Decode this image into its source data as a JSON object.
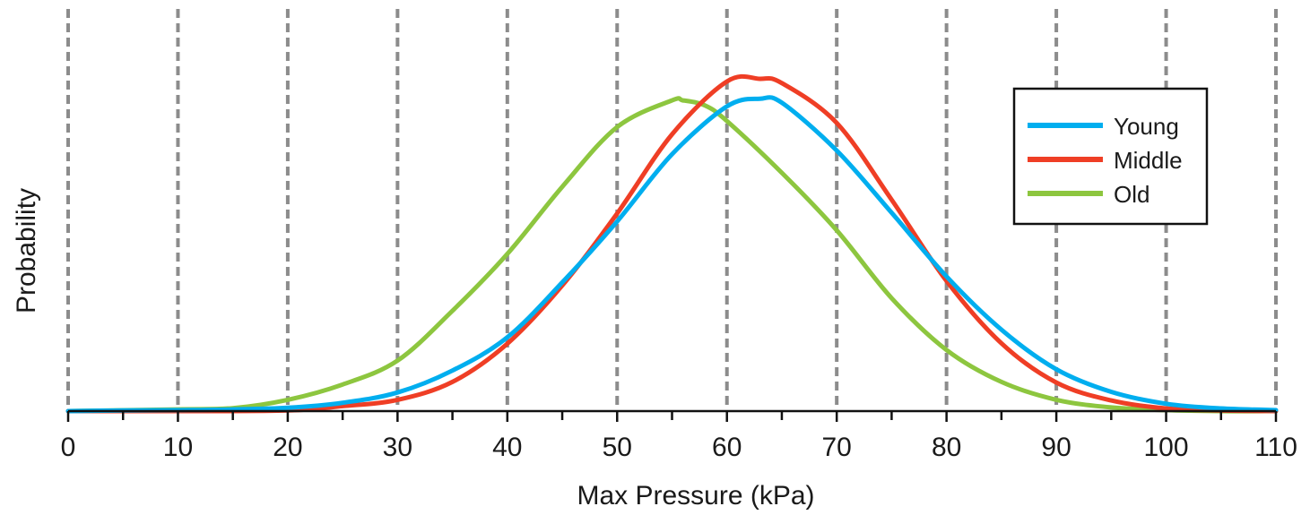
{
  "chart_data": {
    "type": "line",
    "title": "",
    "xlabel": "Max Pressure (kPa)",
    "ylabel": "Probability",
    "xlim": [
      0,
      110
    ],
    "ylim": [
      0,
      1
    ],
    "x_ticks": [
      "0",
      "10",
      "20",
      "30",
      "40",
      "50",
      "60",
      "70",
      "80",
      "90",
      "100",
      "110"
    ],
    "minor_tick_step": 5,
    "grid": "vertical dashed lines at each major x tick",
    "y_tick_labels": false,
    "legend": {
      "position": "top-right",
      "entries": [
        "Young",
        "Middle",
        "Old"
      ]
    },
    "series": [
      {
        "name": "Young",
        "color": "#00aeef",
        "x": [
          0,
          5,
          10,
          15,
          20,
          25,
          30,
          35,
          40,
          45,
          50,
          55,
          60,
          63,
          65,
          70,
          75,
          80,
          85,
          90,
          95,
          100,
          105,
          110
        ],
        "y": [
          0.0,
          0.002,
          0.003,
          0.005,
          0.01,
          0.025,
          0.056,
          0.122,
          0.222,
          0.387,
          0.571,
          0.773,
          0.917,
          0.94,
          0.928,
          0.784,
          0.597,
          0.405,
          0.245,
          0.126,
          0.058,
          0.022,
          0.008,
          0.003
        ]
      },
      {
        "name": "Middle",
        "color": "#ef3e25",
        "x": [
          0,
          10,
          20,
          25,
          30,
          35,
          40,
          45,
          50,
          55,
          60,
          63,
          65,
          70,
          75,
          80,
          85,
          90,
          95,
          100,
          105,
          110
        ],
        "y": [
          0.0,
          0.0,
          0.002,
          0.015,
          0.034,
          0.088,
          0.203,
          0.378,
          0.595,
          0.833,
          0.992,
          1.0,
          0.987,
          0.867,
          0.636,
          0.392,
          0.204,
          0.086,
          0.032,
          0.008,
          0.002,
          0.0
        ]
      },
      {
        "name": "Old",
        "color": "#8dc63f",
        "x": [
          0,
          10,
          15,
          20,
          25,
          30,
          35,
          40,
          45,
          50,
          55,
          56,
          58,
          60,
          65,
          70,
          75,
          80,
          85,
          90,
          95,
          100,
          105,
          110
        ],
        "y": [
          0.0,
          0.005,
          0.009,
          0.034,
          0.08,
          0.152,
          0.302,
          0.473,
          0.675,
          0.855,
          0.935,
          0.935,
          0.92,
          0.873,
          0.717,
          0.544,
          0.34,
          0.184,
          0.088,
          0.034,
          0.011,
          0.003,
          0.0,
          0.0
        ]
      }
    ]
  }
}
